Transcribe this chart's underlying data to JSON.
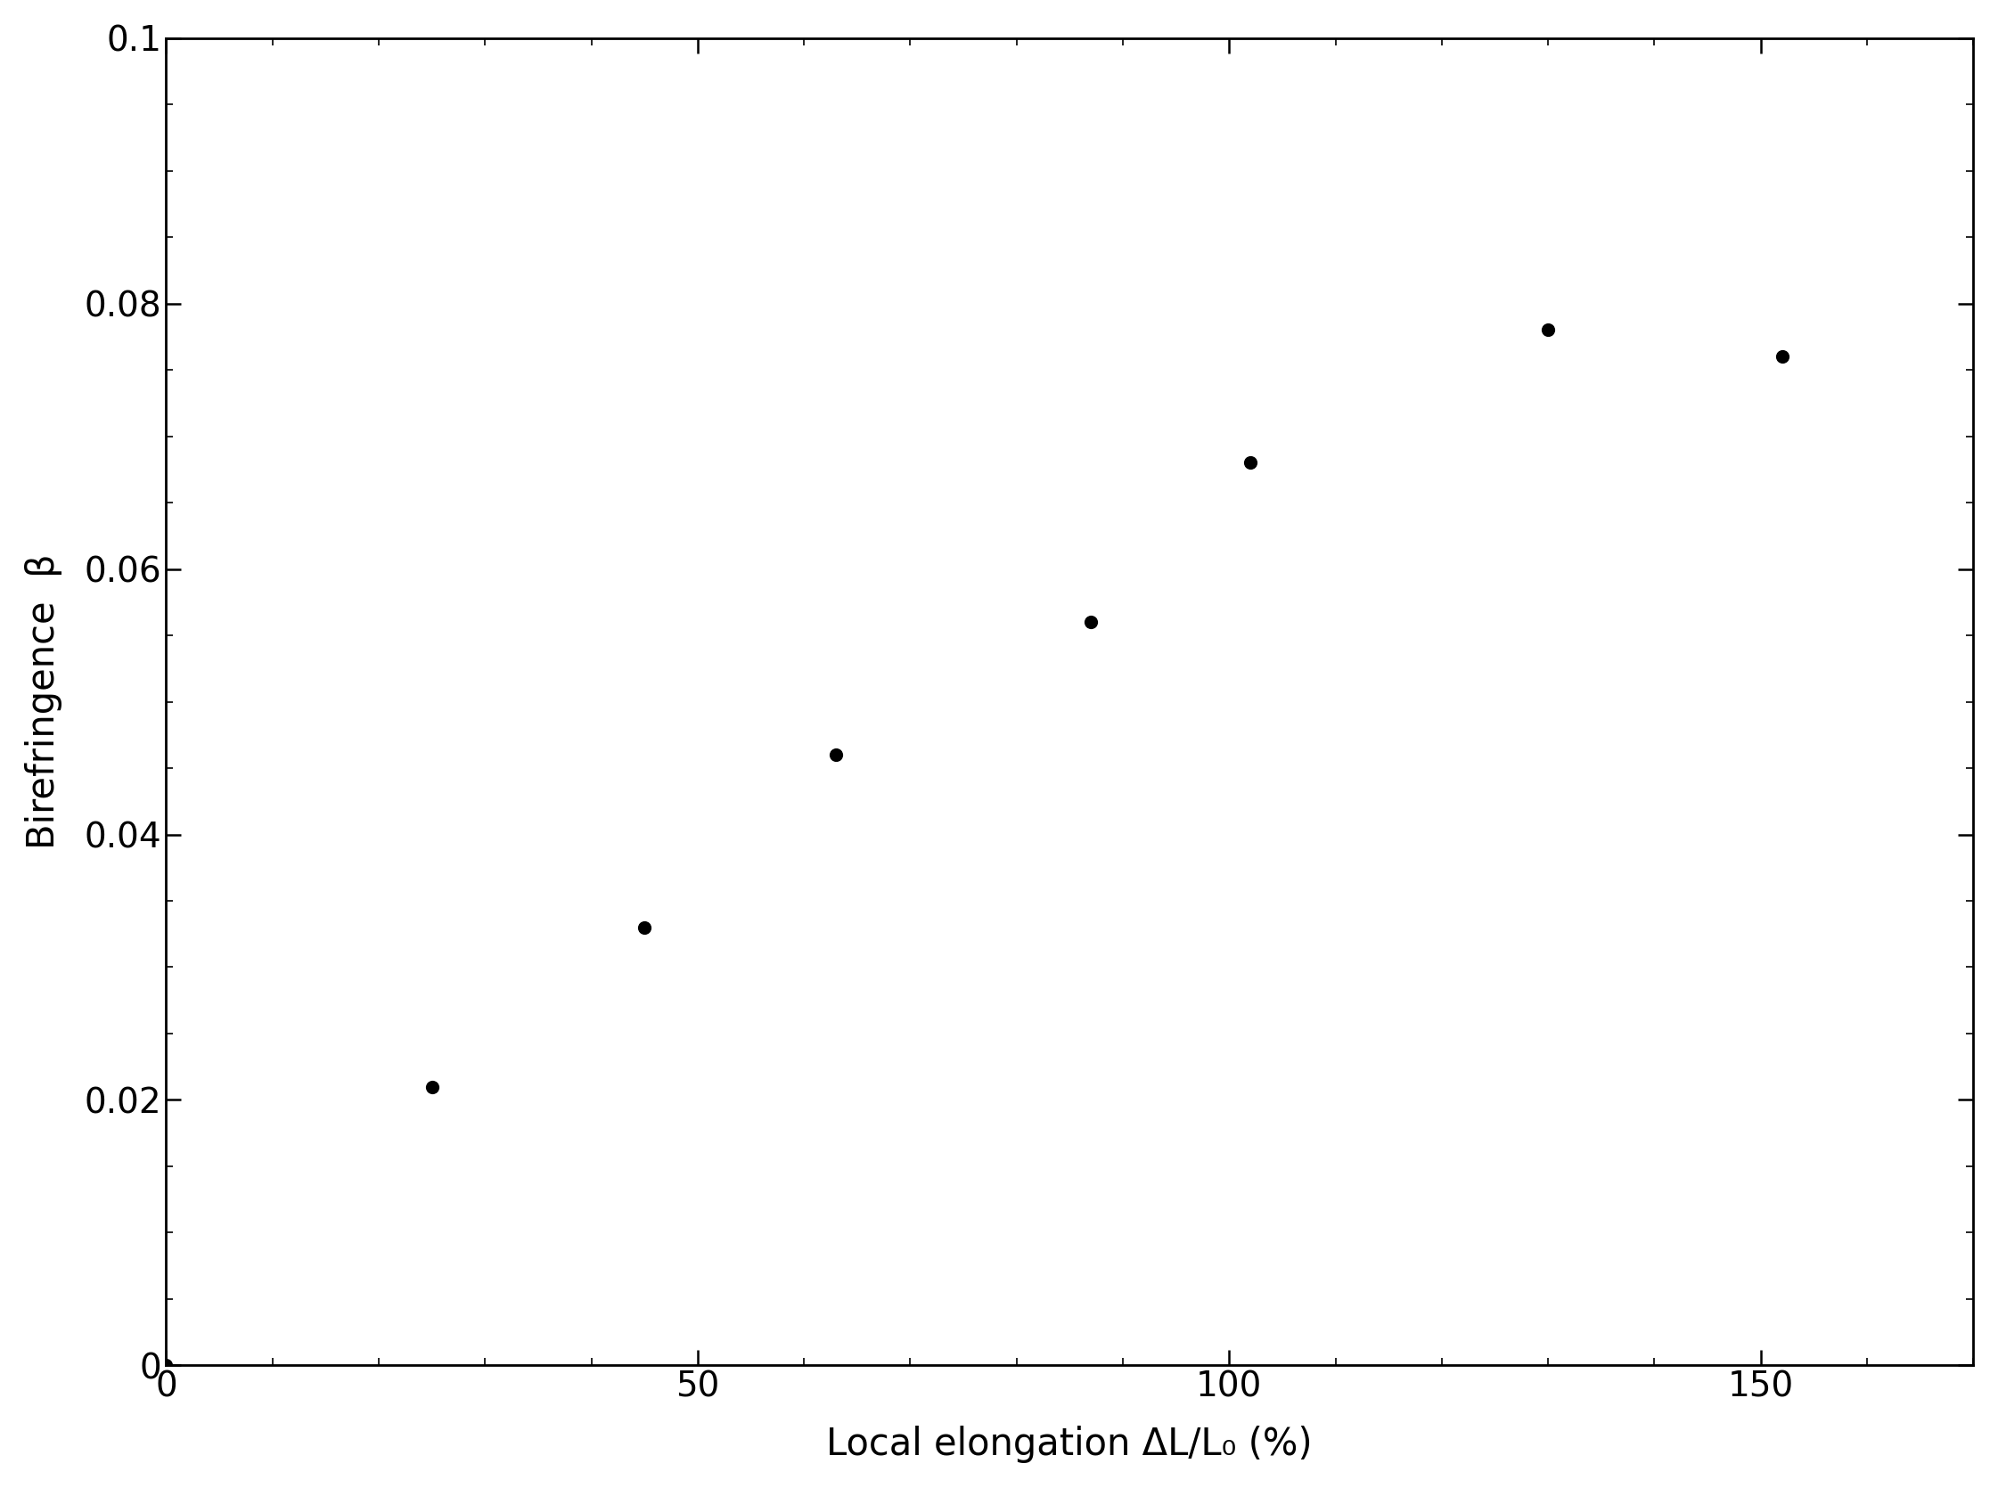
{
  "x": [
    0,
    25,
    45,
    63,
    87,
    102,
    130,
    152
  ],
  "y": [
    0.0,
    0.021,
    0.033,
    0.046,
    0.056,
    0.068,
    0.078,
    0.076
  ],
  "xlabel": "Local elongation ΔL/L₀ (%)",
  "ylabel": "Birefringence  β",
  "xlim": [
    0,
    170
  ],
  "ylim": [
    0,
    0.1
  ],
  "xticks": [
    0,
    50,
    100,
    150
  ],
  "ytick_values": [
    0,
    0.02,
    0.04,
    0.06,
    0.08,
    0.1
  ],
  "ytick_labels": [
    "0",
    "0.02",
    "0.04",
    "0.06",
    "0.08",
    "0.1"
  ],
  "marker_color": "#000000",
  "marker_size": 120,
  "background_color": "#ffffff",
  "label_fontsize": 30,
  "tick_fontsize": 28,
  "spine_linewidth": 2.0
}
